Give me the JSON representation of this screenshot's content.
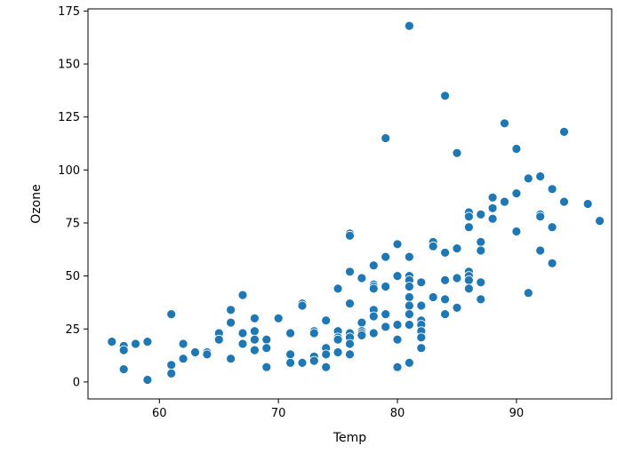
{
  "chart_data": {
    "type": "scatter",
    "xlabel": "Temp",
    "ylabel": "Ozone",
    "xlim": [
      54,
      98
    ],
    "ylim": [
      -8,
      176
    ],
    "xticks": [
      60,
      70,
      80,
      90
    ],
    "yticks": [
      0,
      25,
      50,
      75,
      100,
      125,
      150,
      175
    ],
    "xtick_labels": [
      "60",
      "70",
      "80",
      "90"
    ],
    "ytick_labels": [
      "0",
      "25",
      "50",
      "75",
      "100",
      "125",
      "150",
      "175"
    ],
    "grid": false,
    "legend": "none",
    "marker_color": "#1f77b4",
    "marker_edge_color": "#ffffff",
    "points": [
      [
        56,
        19
      ],
      [
        57,
        17
      ],
      [
        57,
        15
      ],
      [
        57,
        6
      ],
      [
        58,
        18
      ],
      [
        59,
        19
      ],
      [
        59,
        1
      ],
      [
        61,
        32
      ],
      [
        61,
        8
      ],
      [
        61,
        4
      ],
      [
        62,
        18
      ],
      [
        62,
        11
      ],
      [
        63,
        14
      ],
      [
        64,
        14
      ],
      [
        64,
        13
      ],
      [
        65,
        23
      ],
      [
        65,
        20
      ],
      [
        66,
        34
      ],
      [
        66,
        28
      ],
      [
        66,
        11
      ],
      [
        67,
        41
      ],
      [
        67,
        23
      ],
      [
        67,
        18
      ],
      [
        68,
        30
      ],
      [
        68,
        24
      ],
      [
        68,
        20
      ],
      [
        68,
        15
      ],
      [
        69,
        20
      ],
      [
        69,
        16
      ],
      [
        69,
        7
      ],
      [
        70,
        30
      ],
      [
        71,
        23
      ],
      [
        71,
        13
      ],
      [
        71,
        9
      ],
      [
        72,
        37
      ],
      [
        72,
        36
      ],
      [
        72,
        9
      ],
      [
        73,
        24
      ],
      [
        73,
        23
      ],
      [
        73,
        12
      ],
      [
        73,
        10
      ],
      [
        74,
        29
      ],
      [
        74,
        16
      ],
      [
        74,
        13
      ],
      [
        74,
        7
      ],
      [
        75,
        44
      ],
      [
        75,
        24
      ],
      [
        75,
        21
      ],
      [
        75,
        20
      ],
      [
        75,
        14
      ],
      [
        76,
        70
      ],
      [
        76,
        69
      ],
      [
        76,
        52
      ],
      [
        76,
        37
      ],
      [
        76,
        23
      ],
      [
        76,
        21
      ],
      [
        76,
        18
      ],
      [
        76,
        13
      ],
      [
        77,
        49
      ],
      [
        77,
        28
      ],
      [
        77,
        24
      ],
      [
        77,
        23
      ],
      [
        77,
        22
      ],
      [
        78,
        55
      ],
      [
        78,
        46
      ],
      [
        78,
        45
      ],
      [
        78,
        44
      ],
      [
        78,
        34
      ],
      [
        78,
        31
      ],
      [
        78,
        23
      ],
      [
        79,
        115
      ],
      [
        79,
        59
      ],
      [
        79,
        45
      ],
      [
        79,
        32
      ],
      [
        79,
        26
      ],
      [
        80,
        65
      ],
      [
        80,
        50
      ],
      [
        80,
        27
      ],
      [
        80,
        20
      ],
      [
        80,
        7
      ],
      [
        81,
        168
      ],
      [
        81,
        59
      ],
      [
        81,
        50
      ],
      [
        81,
        48
      ],
      [
        81,
        45
      ],
      [
        81,
        40
      ],
      [
        81,
        36
      ],
      [
        81,
        32
      ],
      [
        81,
        27
      ],
      [
        81,
        9
      ],
      [
        82,
        47
      ],
      [
        82,
        36
      ],
      [
        82,
        29
      ],
      [
        82,
        27
      ],
      [
        82,
        24
      ],
      [
        82,
        21
      ],
      [
        82,
        16
      ],
      [
        83,
        66
      ],
      [
        83,
        64
      ],
      [
        83,
        40
      ],
      [
        84,
        135
      ],
      [
        84,
        61
      ],
      [
        84,
        48
      ],
      [
        84,
        39
      ],
      [
        84,
        32
      ],
      [
        85,
        108
      ],
      [
        85,
        63
      ],
      [
        85,
        49
      ],
      [
        85,
        35
      ],
      [
        86,
        80
      ],
      [
        86,
        78
      ],
      [
        86,
        73
      ],
      [
        86,
        52
      ],
      [
        86,
        50
      ],
      [
        86,
        48
      ],
      [
        86,
        44
      ],
      [
        87,
        79
      ],
      [
        87,
        66
      ],
      [
        87,
        62
      ],
      [
        87,
        47
      ],
      [
        87,
        39
      ],
      [
        88,
        87
      ],
      [
        88,
        82
      ],
      [
        88,
        77
      ],
      [
        89,
        122
      ],
      [
        89,
        85
      ],
      [
        90,
        110
      ],
      [
        90,
        89
      ],
      [
        90,
        71
      ],
      [
        91,
        96
      ],
      [
        91,
        42
      ],
      [
        92,
        97
      ],
      [
        92,
        79
      ],
      [
        92,
        78
      ],
      [
        92,
        62
      ],
      [
        93,
        91
      ],
      [
        93,
        73
      ],
      [
        93,
        56
      ],
      [
        94,
        118
      ],
      [
        94,
        85
      ],
      [
        96,
        84
      ],
      [
        97,
        76
      ]
    ]
  }
}
